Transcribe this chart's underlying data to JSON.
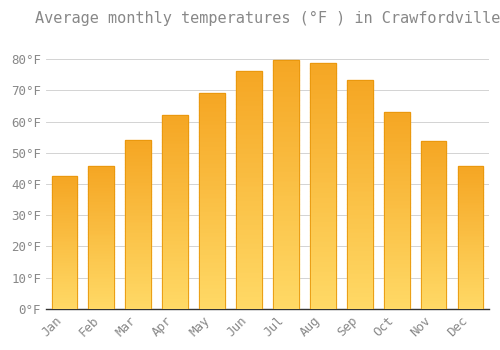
{
  "title": "Average monthly temperatures (°F ) in Crawfordville",
  "months": [
    "Jan",
    "Feb",
    "Mar",
    "Apr",
    "May",
    "Jun",
    "Jul",
    "Aug",
    "Sep",
    "Oct",
    "Nov",
    "Dec"
  ],
  "values": [
    42.5,
    45.9,
    54.1,
    62.0,
    69.2,
    76.3,
    79.7,
    78.8,
    73.3,
    63.0,
    53.7,
    45.7
  ],
  "bar_color_top": "#F5A623",
  "bar_color_bottom": "#FFD966",
  "bar_edge_color": "#E8960A",
  "background_color": "#FFFFFF",
  "plot_bg_color": "#FFFFFF",
  "grid_color": "#CCCCCC",
  "text_color": "#888888",
  "ylim": [
    0,
    88
  ],
  "yticks": [
    0,
    10,
    20,
    30,
    40,
    50,
    60,
    70,
    80
  ],
  "ytick_labels": [
    "0°F",
    "10°F",
    "20°F",
    "30°F",
    "40°F",
    "50°F",
    "60°F",
    "70°F",
    "80°F"
  ],
  "title_fontsize": 11,
  "tick_fontsize": 9,
  "font_family": "monospace",
  "bar_width": 0.7
}
